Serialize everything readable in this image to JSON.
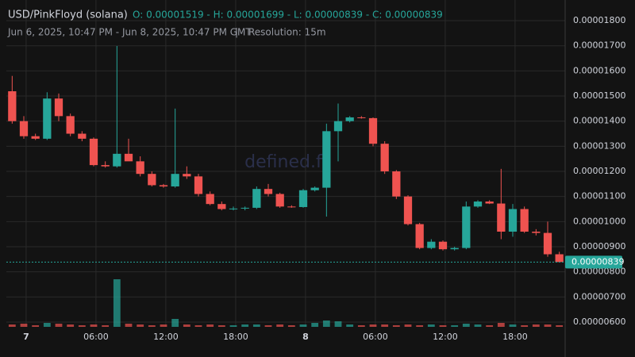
{
  "chart_data": {
    "type": "candlestick",
    "title": "USD/PinkFloyd (solana)",
    "ohlc_text": "O: 0.00001519 - H: 0.00001699 - L: 0.00000839 - C: 0.00000839",
    "subtitle": "Jun 6, 2025, 10:47 PM - Jun 8, 2025, 10:47 PM GMT",
    "separator": "|",
    "resolution": "Resolution: 15m",
    "watermark": "defined.fi",
    "up_color": "#26a69a",
    "down_color": "#ef5350",
    "open": [
      1.519e-05,
      1.4e-05,
      1.34e-05,
      1.33e-05,
      1.49e-05,
      1.42e-05,
      1.35e-05,
      1.33e-05,
      1.225e-05,
      1.22e-05,
      1.27e-05,
      1.24e-05,
      1.19e-05,
      1.145e-05,
      1.14e-05,
      1.19e-05,
      1.18e-05,
      1.11e-05,
      1.07e-05,
      1.05e-05,
      1.052e-05,
      1.055e-05,
      1.13e-05,
      1.11e-05,
      1.06e-05,
      1.058e-05,
      1.125e-05,
      1.135e-05,
      1.36e-05,
      1.4e-05,
      1.415e-05,
      1.412e-05,
      1.31e-05,
      1.2e-05,
      1.1e-05,
      9.9e-06,
      8.95e-06,
      9.2e-06,
      8.9e-06,
      8.95e-06,
      1.06e-05,
      1.08e-05,
      1.072e-05,
      9.6e-06,
      1.05e-05,
      9.6e-06,
      9.55e-06,
      8.7e-06
    ],
    "high": [
      1.58e-05,
      1.42e-05,
      1.35e-05,
      1.515e-05,
      1.51e-05,
      1.43e-05,
      1.36e-05,
      1.335e-05,
      1.24e-05,
      1.699e-05,
      1.33e-05,
      1.26e-05,
      1.2e-05,
      1.15e-05,
      1.45e-05,
      1.22e-05,
      1.19e-05,
      1.12e-05,
      1.08e-05,
      1.06e-05,
      1.06e-05,
      1.14e-05,
      1.15e-05,
      1.115e-05,
      1.065e-05,
      1.13e-05,
      1.14e-05,
      1.39e-05,
      1.47e-05,
      1.42e-05,
      1.42e-05,
      1.415e-05,
      1.32e-05,
      1.205e-05,
      1.105e-05,
      9.95e-06,
      9.3e-06,
      9.25e-06,
      9e-06,
      1.08e-05,
      1.085e-05,
      1.085e-05,
      1.21e-05,
      1.07e-05,
      1.06e-05,
      9.7e-06,
      1e-05,
      8.8e-06
    ],
    "low": [
      1.39e-05,
      1.33e-05,
      1.325e-05,
      1.325e-05,
      1.4e-05,
      1.34e-05,
      1.32e-05,
      1.22e-05,
      1.215e-05,
      1.215e-05,
      1.25e-05,
      1.18e-05,
      1.14e-05,
      1.135e-05,
      1.135e-05,
      1.17e-05,
      1.1e-05,
      1.065e-05,
      1.045e-05,
      1.045e-05,
      1.045e-05,
      1.05e-05,
      1.1e-05,
      1.055e-05,
      1.055e-05,
      1.055e-05,
      1.12e-05,
      1.02e-05,
      1.24e-05,
      1.395e-05,
      1.41e-05,
      1.3e-05,
      1.19e-05,
      1.09e-05,
      9.85e-06,
      8.9e-06,
      8.9e-06,
      8.85e-06,
      8.85e-06,
      8.9e-06,
      1.055e-05,
      1.07e-05,
      9.3e-06,
      9.4e-06,
      9.55e-06,
      9.45e-06,
      8.6e-06,
      8.39e-06
    ],
    "close": [
      1.4e-05,
      1.34e-05,
      1.33e-05,
      1.49e-05,
      1.42e-05,
      1.35e-05,
      1.33e-05,
      1.225e-05,
      1.22e-05,
      1.27e-05,
      1.24e-05,
      1.19e-05,
      1.145e-05,
      1.14e-05,
      1.19e-05,
      1.18e-05,
      1.11e-05,
      1.07e-05,
      1.05e-05,
      1.052e-05,
      1.055e-05,
      1.13e-05,
      1.11e-05,
      1.06e-05,
      1.058e-05,
      1.125e-05,
      1.135e-05,
      1.36e-05,
      1.4e-05,
      1.415e-05,
      1.412e-05,
      1.31e-05,
      1.2e-05,
      1.1e-05,
      9.9e-06,
      8.95e-06,
      9.2e-06,
      8.9e-06,
      8.95e-06,
      1.06e-05,
      1.08e-05,
      1.072e-05,
      9.6e-06,
      1.05e-05,
      9.6e-06,
      9.55e-06,
      8.7e-06,
      8.39e-06
    ],
    "volume": [
      3,
      4,
      2,
      5,
      4,
      3,
      2,
      3,
      2,
      60,
      4,
      3,
      2,
      3,
      10,
      3,
      2,
      3,
      2,
      2,
      3,
      3,
      2,
      3,
      2,
      3,
      5,
      8,
      7,
      3,
      2,
      3,
      3,
      2,
      3,
      2,
      3,
      2,
      2,
      4,
      3,
      2,
      5,
      3,
      2,
      3,
      3,
      2
    ],
    "xlim": [
      -0.5,
      47.5
    ],
    "xticks": [
      {
        "value": 1.2,
        "label": "7"
      },
      {
        "value": 7.2,
        "label": "06:00"
      },
      {
        "value": 13.2,
        "label": "12:00"
      },
      {
        "value": 19.2,
        "label": "18:00"
      },
      {
        "value": 25.2,
        "label": "8"
      },
      {
        "value": 31.2,
        "label": "06:00"
      },
      {
        "value": 37.2,
        "label": "12:00"
      },
      {
        "value": 43.2,
        "label": "18:00"
      }
    ],
    "ylim": [
      5.81e-06,
      1.857e-05
    ],
    "yticks": [
      {
        "value": 6e-06,
        "label": "0.00000600"
      },
      {
        "value": 7e-06,
        "label": "0.00000700"
      },
      {
        "value": 8e-06,
        "label": "0.00000800"
      },
      {
        "value": 9e-06,
        "label": "0.00000900"
      },
      {
        "value": 1e-05,
        "label": "0.00001000"
      },
      {
        "value": 1.1e-05,
        "label": "0.00001100"
      },
      {
        "value": 1.2e-05,
        "label": "0.00001200"
      },
      {
        "value": 1.3e-05,
        "label": "0.00001300"
      },
      {
        "value": 1.4e-05,
        "label": "0.00001400"
      },
      {
        "value": 1.5e-05,
        "label": "0.00001500"
      },
      {
        "value": 1.6e-05,
        "label": "0.00001600"
      },
      {
        "value": 1.7e-05,
        "label": "0.00001700"
      },
      {
        "value": 1.8e-05,
        "label": "0.00001800"
      }
    ],
    "last_price": {
      "value": 8.39e-06,
      "label": "0.00000839"
    },
    "grid": true
  }
}
